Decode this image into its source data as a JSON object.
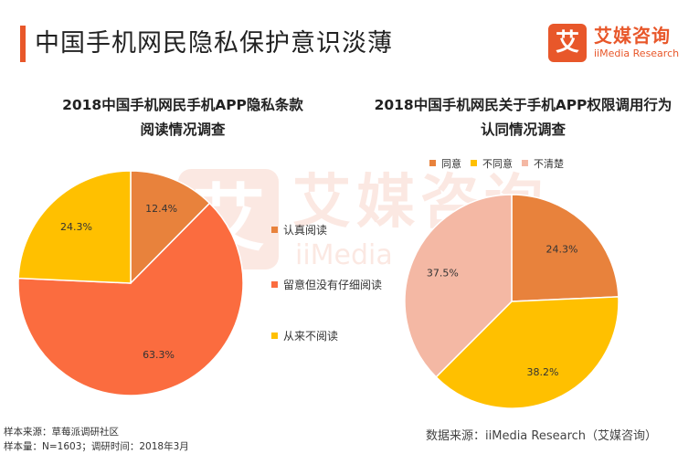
{
  "page_title": "中国手机网民隐私保护意识淡薄",
  "logo": {
    "mark": "艾",
    "cn": "艾媒咨询",
    "en": "iiMedia Research"
  },
  "watermark": {
    "mark": "艾",
    "cn": "艾媒咨询",
    "en": "iiMedia"
  },
  "chart_data": [
    {
      "type": "pie",
      "title_line1": "2018中国手机网民手机APP隐私条款",
      "title_line2": "阅读情况调查",
      "categories": [
        "认真阅读",
        "留意但没有仔细阅读",
        "从来不阅读"
      ],
      "values": [
        12.4,
        63.3,
        24.3
      ],
      "labels": [
        "12.4%",
        "63.3%",
        "24.3%"
      ],
      "colors": [
        "#e8823c",
        "#fb6c3f",
        "#ffc000"
      ],
      "start": "top, clockwise",
      "legend_position": "right"
    },
    {
      "type": "pie",
      "title_line1": "2018中国手机网民关于手机APP权限调用行为",
      "title_line2": "认同情况调查",
      "categories": [
        "同意",
        "不同意",
        "不清楚"
      ],
      "values": [
        24.3,
        38.2,
        37.5
      ],
      "labels": [
        "24.3%",
        "38.2%",
        "37.5%"
      ],
      "colors": [
        "#e8823c",
        "#ffc000",
        "#f4b8a4"
      ],
      "start": "top, clockwise",
      "legend_position": "top"
    }
  ],
  "footnotes": {
    "line1": "样本来源：草莓派调研社区",
    "line2": "样本量：N=1603；调研时间：2018年3月"
  },
  "source": "数据来源：iiMedia Research（艾媒咨询）"
}
